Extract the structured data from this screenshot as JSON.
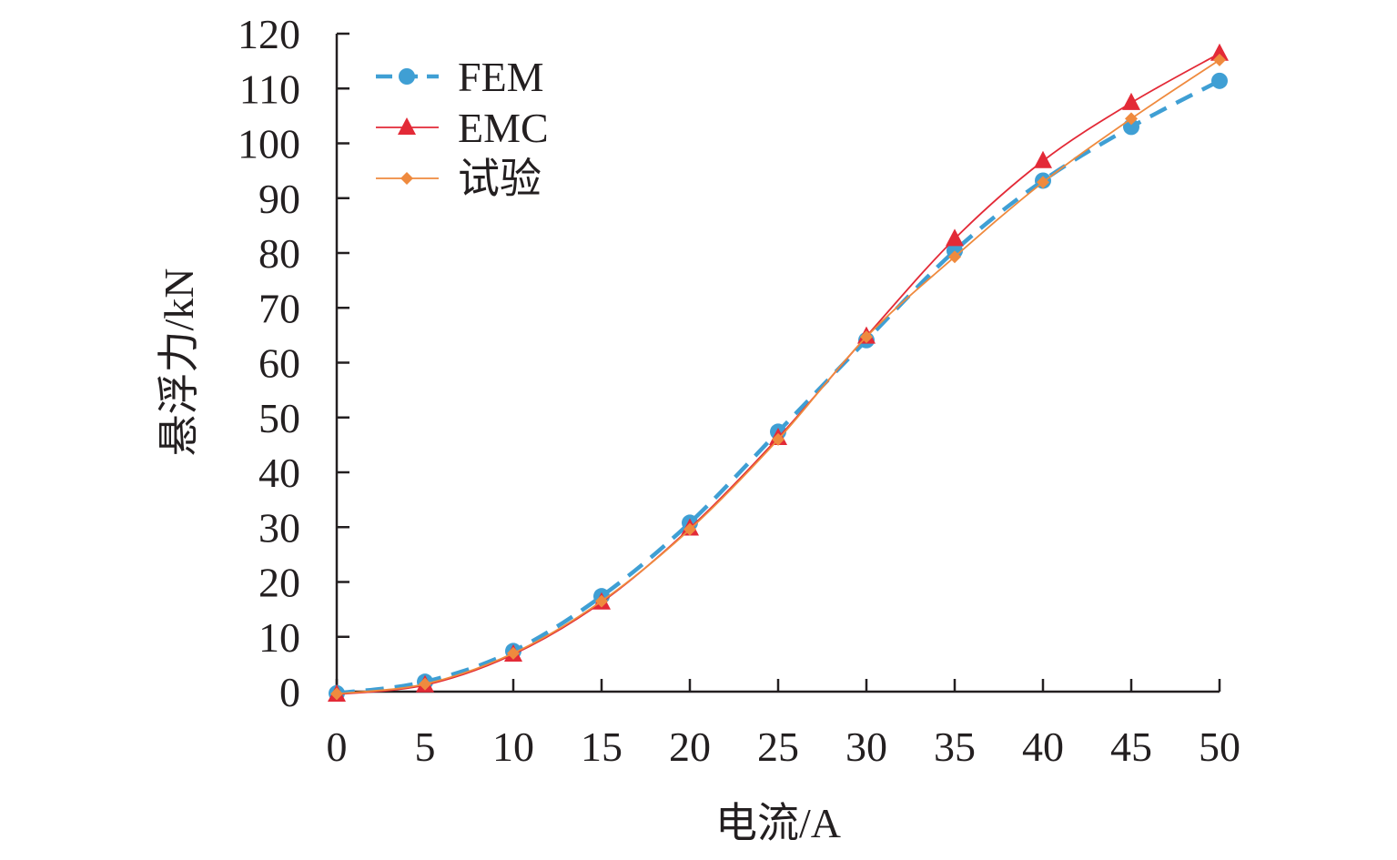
{
  "chart_data": {
    "type": "line",
    "xlabel": "电流/A",
    "ylabel": "悬浮力/kN",
    "xlim": [
      0,
      50
    ],
    "ylim": [
      0,
      120
    ],
    "xticks": [
      0,
      5,
      10,
      15,
      20,
      25,
      30,
      35,
      40,
      45,
      50
    ],
    "yticks": [
      0,
      10,
      20,
      30,
      40,
      50,
      60,
      70,
      80,
      90,
      100,
      110,
      120
    ],
    "grid": false,
    "legend_position": "top-left",
    "x": [
      0,
      5,
      10,
      15,
      20,
      25,
      30,
      35,
      40,
      45,
      50
    ],
    "series": [
      {
        "name": "FEM",
        "values": [
          -0.3,
          1.8,
          7.4,
          17.4,
          30.8,
          47.4,
          64.1,
          80.4,
          93.2,
          103.0,
          111.4
        ],
        "color": "#3f9fd4",
        "marker": "circle",
        "line_style": "dashed"
      },
      {
        "name": "EMC",
        "values": [
          -0.5,
          1.2,
          6.8,
          16.3,
          29.8,
          46.3,
          64.8,
          82.6,
          96.8,
          107.4,
          116.4
        ],
        "color": "#e32a37",
        "marker": "triangle",
        "line_style": "solid"
      },
      {
        "name": "试验",
        "values": [
          -0.4,
          1.4,
          7.0,
          16.5,
          29.6,
          46.0,
          64.7,
          79.3,
          92.9,
          104.5,
          115.2
        ],
        "color": "#ef8a3e",
        "marker": "diamond",
        "line_style": "solid"
      }
    ]
  }
}
